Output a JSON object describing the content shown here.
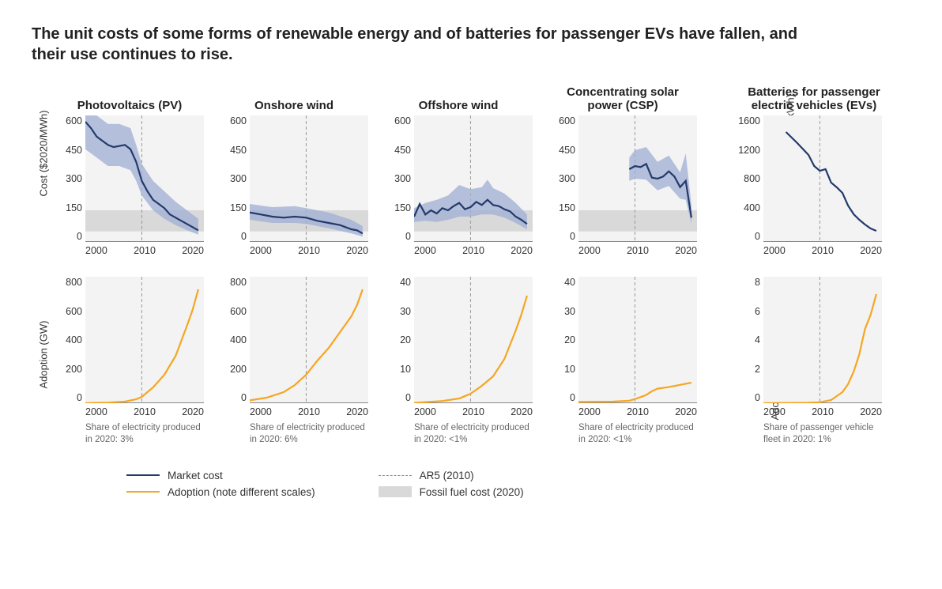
{
  "title": "The unit costs of some forms of renewable energy and of batteries for passenger EVs have fallen, and their use continues to rise.",
  "colors": {
    "market_cost": "#233a6b",
    "cost_band": "#9fadd4",
    "adoption": "#f5a623",
    "fossil_band": "#d9d9d9",
    "grid_dash": "#999999",
    "plot_bg": "#f3f3f3",
    "axis": "#888888",
    "text": "#333333"
  },
  "x": {
    "min": 2000,
    "max": 2021,
    "ticks": [
      "2000",
      "2010",
      "2020"
    ],
    "ref_year": 2010
  },
  "cost_row": {
    "ylabel": "Cost ($2020/MWh)",
    "ylim": [
      0,
      600
    ],
    "yticks": [
      "600",
      "450",
      "300",
      "150",
      "0"
    ],
    "panels": [
      {
        "id": "pv",
        "title": "Photovoltaics (PV)",
        "fossil_band": [
          50,
          150
        ],
        "line": [
          [
            2000,
            570
          ],
          [
            2001,
            540
          ],
          [
            2002,
            500
          ],
          [
            2003,
            480
          ],
          [
            2004,
            460
          ],
          [
            2005,
            450
          ],
          [
            2006,
            455
          ],
          [
            2007,
            460
          ],
          [
            2008,
            440
          ],
          [
            2009,
            380
          ],
          [
            2010,
            290
          ],
          [
            2011,
            240
          ],
          [
            2012,
            200
          ],
          [
            2013,
            180
          ],
          [
            2014,
            160
          ],
          [
            2015,
            130
          ],
          [
            2016,
            115
          ],
          [
            2017,
            100
          ],
          [
            2018,
            85
          ],
          [
            2019,
            70
          ],
          [
            2020,
            55
          ]
        ],
        "upper": [
          [
            2000,
            650
          ],
          [
            2002,
            600
          ],
          [
            2004,
            560
          ],
          [
            2006,
            560
          ],
          [
            2008,
            540
          ],
          [
            2009,
            460
          ],
          [
            2010,
            370
          ],
          [
            2012,
            290
          ],
          [
            2014,
            240
          ],
          [
            2016,
            190
          ],
          [
            2018,
            150
          ],
          [
            2020,
            110
          ]
        ],
        "lower": [
          [
            2000,
            440
          ],
          [
            2002,
            400
          ],
          [
            2004,
            360
          ],
          [
            2006,
            360
          ],
          [
            2008,
            340
          ],
          [
            2009,
            290
          ],
          [
            2010,
            220
          ],
          [
            2012,
            150
          ],
          [
            2014,
            110
          ],
          [
            2016,
            80
          ],
          [
            2018,
            55
          ],
          [
            2020,
            35
          ]
        ]
      },
      {
        "id": "onshore",
        "title": "Onshore wind",
        "fossil_band": [
          50,
          150
        ],
        "line": [
          [
            2000,
            140
          ],
          [
            2002,
            130
          ],
          [
            2004,
            120
          ],
          [
            2006,
            115
          ],
          [
            2008,
            120
          ],
          [
            2010,
            115
          ],
          [
            2012,
            100
          ],
          [
            2014,
            90
          ],
          [
            2016,
            80
          ],
          [
            2018,
            60
          ],
          [
            2019,
            55
          ],
          [
            2020,
            40
          ]
        ],
        "upper": [
          [
            2000,
            180
          ],
          [
            2004,
            165
          ],
          [
            2008,
            170
          ],
          [
            2010,
            160
          ],
          [
            2014,
            140
          ],
          [
            2018,
            105
          ],
          [
            2020,
            75
          ]
        ],
        "lower": [
          [
            2000,
            105
          ],
          [
            2004,
            90
          ],
          [
            2008,
            90
          ],
          [
            2010,
            85
          ],
          [
            2014,
            65
          ],
          [
            2018,
            40
          ],
          [
            2020,
            25
          ]
        ]
      },
      {
        "id": "offshore",
        "title": "Offshore wind",
        "fossil_band": [
          50,
          150
        ],
        "line": [
          [
            2000,
            120
          ],
          [
            2001,
            180
          ],
          [
            2002,
            130
          ],
          [
            2003,
            150
          ],
          [
            2004,
            135
          ],
          [
            2005,
            160
          ],
          [
            2006,
            150
          ],
          [
            2007,
            170
          ],
          [
            2008,
            185
          ],
          [
            2009,
            155
          ],
          [
            2010,
            165
          ],
          [
            2011,
            190
          ],
          [
            2012,
            175
          ],
          [
            2013,
            200
          ],
          [
            2014,
            175
          ],
          [
            2015,
            170
          ],
          [
            2016,
            155
          ],
          [
            2017,
            145
          ],
          [
            2018,
            120
          ],
          [
            2019,
            105
          ],
          [
            2020,
            85
          ]
        ],
        "upper": [
          [
            2000,
            160
          ],
          [
            2002,
            185
          ],
          [
            2004,
            200
          ],
          [
            2006,
            220
          ],
          [
            2008,
            270
          ],
          [
            2010,
            250
          ],
          [
            2012,
            260
          ],
          [
            2013,
            295
          ],
          [
            2014,
            255
          ],
          [
            2016,
            230
          ],
          [
            2018,
            185
          ],
          [
            2020,
            130
          ]
        ],
        "lower": [
          [
            2000,
            95
          ],
          [
            2002,
            100
          ],
          [
            2004,
            95
          ],
          [
            2006,
            105
          ],
          [
            2008,
            120
          ],
          [
            2010,
            120
          ],
          [
            2012,
            130
          ],
          [
            2014,
            130
          ],
          [
            2016,
            115
          ],
          [
            2018,
            90
          ],
          [
            2020,
            60
          ]
        ]
      },
      {
        "id": "csp",
        "title": "Concentrating solar power (CSP)",
        "fossil_band": [
          50,
          150
        ],
        "line": [
          [
            2009,
            345
          ],
          [
            2010,
            360
          ],
          [
            2011,
            355
          ],
          [
            2012,
            370
          ],
          [
            2013,
            305
          ],
          [
            2014,
            300
          ],
          [
            2015,
            310
          ],
          [
            2016,
            335
          ],
          [
            2017,
            310
          ],
          [
            2018,
            260
          ],
          [
            2019,
            290
          ],
          [
            2020,
            115
          ]
        ],
        "upper": [
          [
            2009,
            400
          ],
          [
            2010,
            435
          ],
          [
            2012,
            450
          ],
          [
            2014,
            380
          ],
          [
            2016,
            410
          ],
          [
            2018,
            330
          ],
          [
            2019,
            420
          ],
          [
            2020,
            175
          ]
        ],
        "lower": [
          [
            2009,
            290
          ],
          [
            2010,
            300
          ],
          [
            2012,
            295
          ],
          [
            2014,
            245
          ],
          [
            2016,
            265
          ],
          [
            2018,
            205
          ],
          [
            2019,
            200
          ],
          [
            2020,
            85
          ]
        ]
      }
    ],
    "battery_panel": {
      "id": "battery",
      "title": "Batteries for passenger electric vehicles (EVs)",
      "ylabel": "Li-on battery packs ($2020/kWh)",
      "ylim": [
        0,
        1600
      ],
      "yticks": [
        "1600",
        "1200",
        "800",
        "400",
        "0"
      ],
      "line": [
        [
          2004,
          1390
        ],
        [
          2006,
          1250
        ],
        [
          2008,
          1100
        ],
        [
          2009,
          960
        ],
        [
          2010,
          900
        ],
        [
          2011,
          920
        ],
        [
          2012,
          750
        ],
        [
          2013,
          690
        ],
        [
          2014,
          620
        ],
        [
          2015,
          460
        ],
        [
          2016,
          350
        ],
        [
          2017,
          280
        ],
        [
          2018,
          220
        ],
        [
          2019,
          170
        ],
        [
          2020,
          140
        ]
      ]
    }
  },
  "adopt_row": {
    "ylabel": "Adoption (GW)",
    "panels": [
      {
        "id": "pv",
        "ylim": [
          0,
          800
        ],
        "yticks": [
          "800",
          "600",
          "400",
          "200",
          "0"
        ],
        "line": [
          [
            2000,
            1
          ],
          [
            2004,
            4
          ],
          [
            2007,
            10
          ],
          [
            2009,
            25
          ],
          [
            2010,
            40
          ],
          [
            2012,
            100
          ],
          [
            2014,
            180
          ],
          [
            2016,
            300
          ],
          [
            2018,
            490
          ],
          [
            2019,
            590
          ],
          [
            2020,
            720
          ]
        ],
        "share": "Share of electricity produced in 2020: 3%"
      },
      {
        "id": "onshore",
        "ylim": [
          0,
          800
        ],
        "yticks": [
          "800",
          "600",
          "400",
          "200",
          "0"
        ],
        "line": [
          [
            2000,
            18
          ],
          [
            2003,
            35
          ],
          [
            2006,
            70
          ],
          [
            2008,
            115
          ],
          [
            2010,
            180
          ],
          [
            2012,
            270
          ],
          [
            2014,
            350
          ],
          [
            2016,
            450
          ],
          [
            2018,
            550
          ],
          [
            2019,
            620
          ],
          [
            2020,
            720
          ]
        ],
        "share": "Share of electricity produced in 2020: 6%"
      },
      {
        "id": "offshore",
        "ylim": [
          0,
          40
        ],
        "yticks": [
          "40",
          "30",
          "20",
          "10",
          "0"
        ],
        "line": [
          [
            2000,
            0.1
          ],
          [
            2005,
            0.7
          ],
          [
            2008,
            1.5
          ],
          [
            2010,
            3
          ],
          [
            2012,
            5.5
          ],
          [
            2014,
            8.5
          ],
          [
            2016,
            14
          ],
          [
            2018,
            23
          ],
          [
            2019,
            28
          ],
          [
            2020,
            34
          ]
        ],
        "share": "Share of electricity produced in 2020: <1%"
      },
      {
        "id": "csp",
        "ylim": [
          0,
          40
        ],
        "yticks": [
          "40",
          "30",
          "20",
          "10",
          "0"
        ],
        "line": [
          [
            2000,
            0.4
          ],
          [
            2006,
            0.5
          ],
          [
            2009,
            0.8
          ],
          [
            2010,
            1.3
          ],
          [
            2012,
            2.6
          ],
          [
            2013,
            3.8
          ],
          [
            2014,
            4.6
          ],
          [
            2016,
            5.1
          ],
          [
            2018,
            5.8
          ],
          [
            2020,
            6.5
          ]
        ],
        "share": "Share of electricity produced in 2020: <1%"
      }
    ],
    "ev_panel": {
      "id": "ev",
      "ylabel": "Adoption (millions of EVs)",
      "ylim": [
        0,
        8
      ],
      "yticks": [
        "8",
        "6",
        "4",
        "2",
        "0"
      ],
      "line": [
        [
          2000,
          0.01
        ],
        [
          2008,
          0.03
        ],
        [
          2010,
          0.06
        ],
        [
          2012,
          0.2
        ],
        [
          2014,
          0.7
        ],
        [
          2015,
          1.2
        ],
        [
          2016,
          2.0
        ],
        [
          2017,
          3.1
        ],
        [
          2018,
          4.7
        ],
        [
          2019,
          5.6
        ],
        [
          2020,
          6.9
        ]
      ],
      "share": "Share of passenger vehicle fleet in 2020: 1%"
    }
  },
  "legend": {
    "market": "Market cost",
    "adoption": "Adoption (note different scales)",
    "ar5": "AR5 (2010)",
    "fossil": "Fossil fuel cost (2020)"
  }
}
